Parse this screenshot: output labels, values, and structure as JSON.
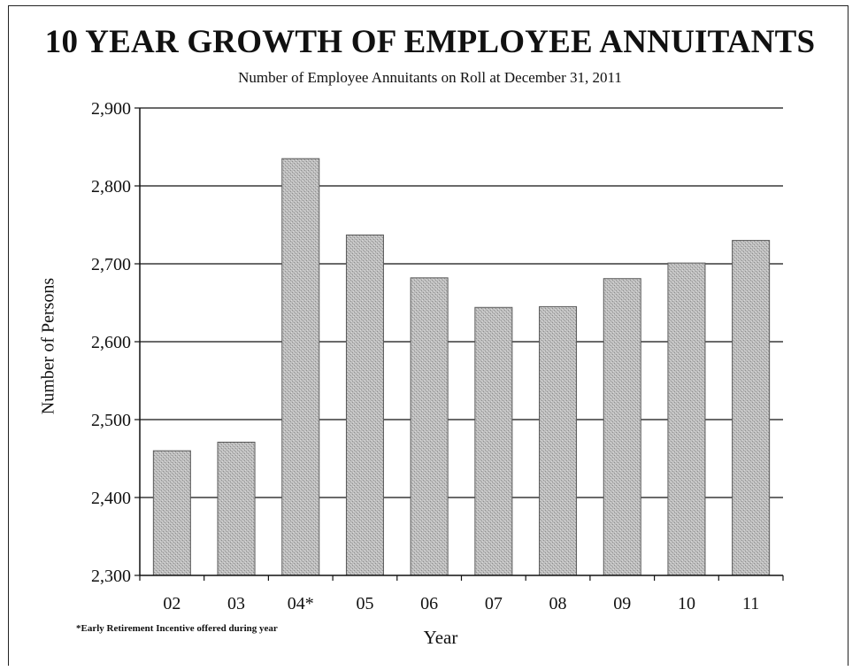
{
  "chart_data": {
    "type": "bar",
    "title": "10 YEAR GROWTH OF EMPLOYEE ANNUITANTS",
    "subtitle": "Number of Employee Annuitants on Roll at December 31, 2011",
    "xlabel": "Year",
    "ylabel": "Number of Persons",
    "categories": [
      "02",
      "03",
      "04*",
      "05",
      "06",
      "07",
      "08",
      "09",
      "10",
      "11"
    ],
    "values": [
      2460,
      2471,
      2835,
      2737,
      2682,
      2644,
      2645,
      2681,
      2701,
      2730
    ],
    "ylim": [
      2300,
      2900
    ],
    "yticks": [
      2300,
      2400,
      2500,
      2600,
      2700,
      2800,
      2900
    ],
    "ytick_labels": [
      "2,300",
      "2,400",
      "2,500",
      "2,600",
      "2,700",
      "2,800",
      "2,900"
    ],
    "grid": true,
    "footnote": "*Early Retirement Incentive offered during year",
    "colors": {
      "bar_fill": "#b9b9b9",
      "bar_edge": "#5a5a5a",
      "grid": "#111111"
    }
  }
}
